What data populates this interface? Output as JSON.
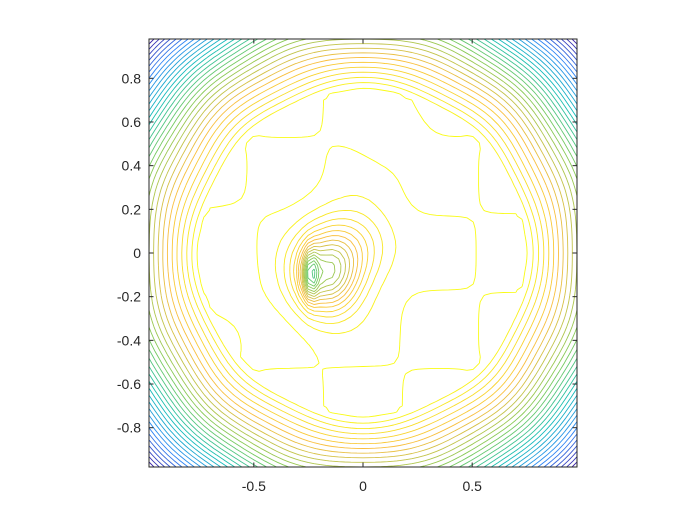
{
  "chart_data": {
    "type": "contour",
    "title": "",
    "xlabel": "",
    "ylabel": "",
    "xlim": [
      -0.98,
      0.98
    ],
    "ylim": [
      -0.98,
      0.98
    ],
    "grid": false,
    "legend": "none",
    "colormap": "parula",
    "colormap_colors": [
      "#3E26A8",
      "#2E87F7",
      "#13BEB8",
      "#80CB58",
      "#F9BD3F",
      "#F9FB15"
    ],
    "x_ticks": [
      {
        "value": -0.5,
        "label": "-0.5"
      },
      {
        "value": 0,
        "label": "0"
      },
      {
        "value": 0.5,
        "label": "0.5"
      }
    ],
    "y_ticks": [
      {
        "value": 0.8,
        "label": "0.8"
      },
      {
        "value": 0.6,
        "label": "0.6"
      },
      {
        "value": 0.4,
        "label": "0.4"
      },
      {
        "value": 0.2,
        "label": "0.2"
      },
      {
        "value": 0,
        "label": "0"
      },
      {
        "value": -0.2,
        "label": "-0.2"
      },
      {
        "value": -0.4,
        "label": "-0.4"
      },
      {
        "value": -0.6,
        "label": "-0.6"
      },
      {
        "value": -0.8,
        "label": "-0.8"
      }
    ]
  }
}
